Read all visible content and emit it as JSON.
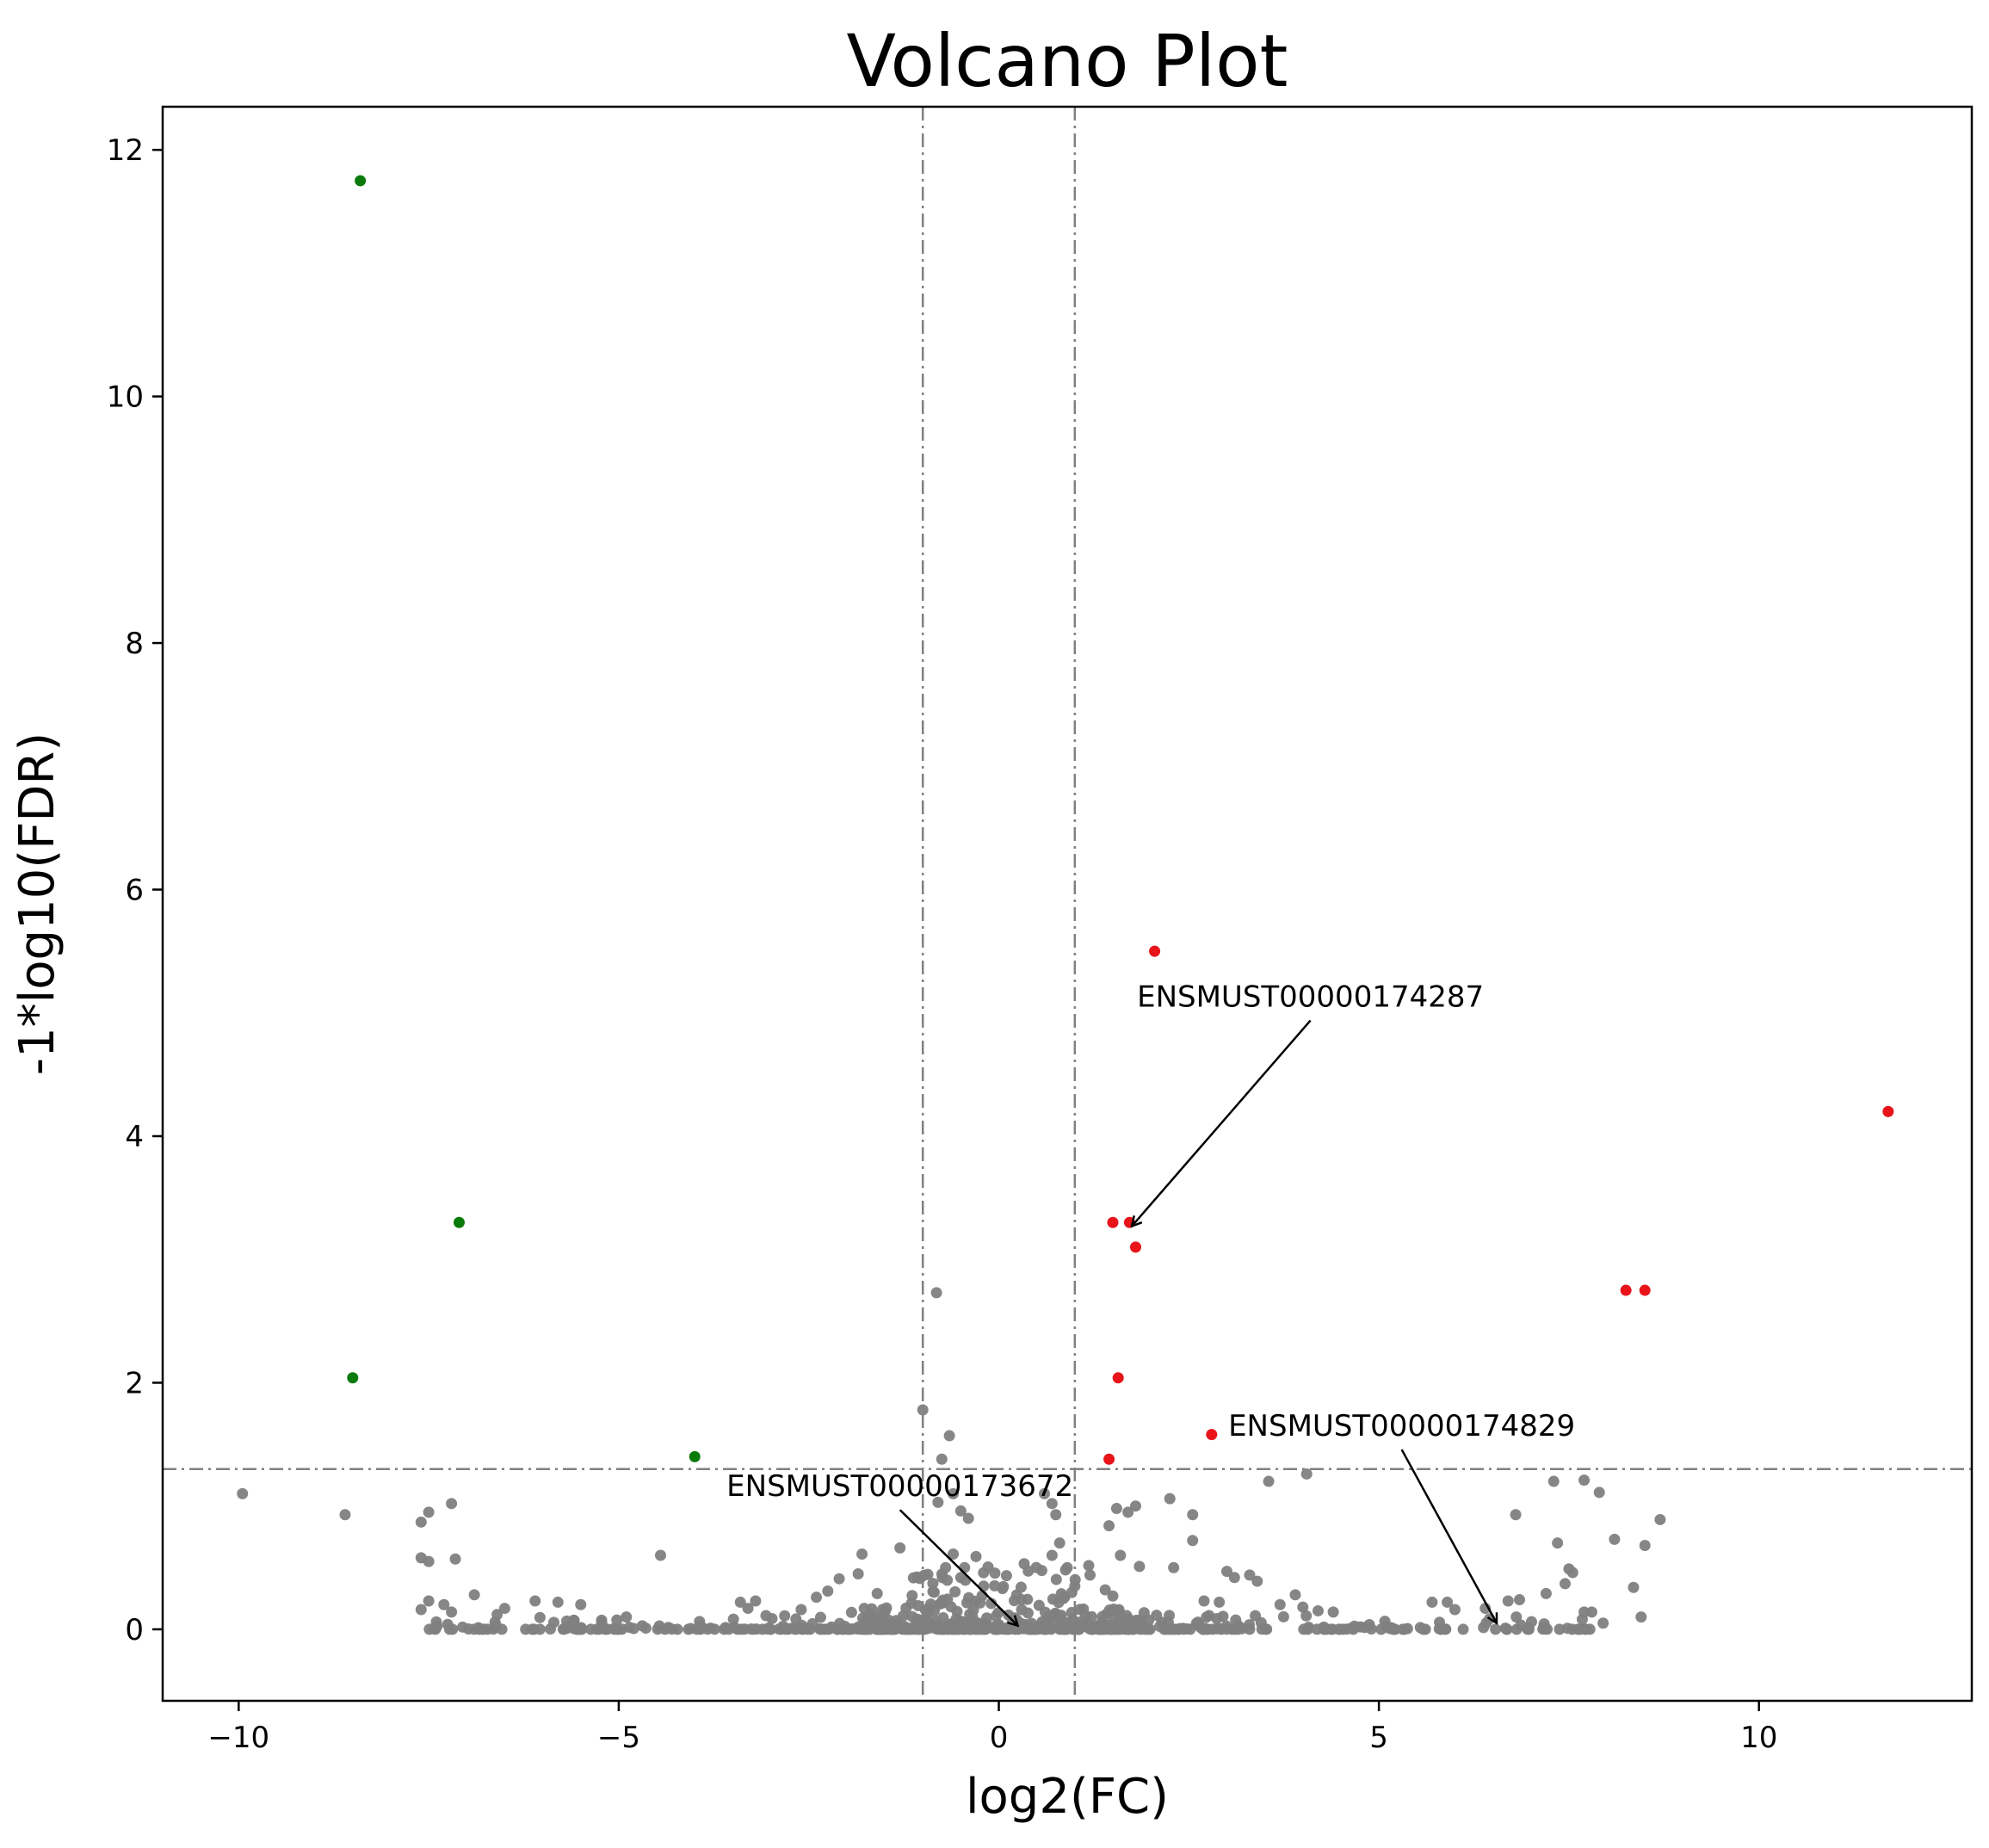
{
  "chart_data": {
    "type": "scatter",
    "title": "Volcano Plot",
    "xlabel": "log2(FC)",
    "ylabel": "-1*log10(FDR)",
    "xlim": [
      -11,
      12.8
    ],
    "ylim": [
      -0.58,
      12.35
    ],
    "x_ticks": [
      -10,
      -5,
      0,
      5,
      10
    ],
    "x_tick_labels": [
      "−10",
      "−5",
      "0",
      "5",
      "10"
    ],
    "y_ticks": [
      0,
      2,
      4,
      6,
      8,
      10,
      12
    ],
    "y_tick_labels": [
      "0",
      "2",
      "4",
      "6",
      "8",
      "10",
      "12"
    ],
    "grid": false,
    "thresholds": {
      "log2fc": [
        -1,
        1
      ],
      "neg_log10_fdr": 1.3
    },
    "colors": {
      "down": "#0a7a0a",
      "up": "#e8141a",
      "ns": "#808080",
      "threshold_line": "#808080"
    },
    "series": [
      {
        "category": "down",
        "points": [
          [
            -8.4,
            11.75
          ],
          [
            -7.1,
            3.3
          ],
          [
            -8.5,
            2.04
          ],
          [
            -4,
            1.4
          ]
        ]
      },
      {
        "category": "up",
        "points": [
          [
            2.05,
            5.5
          ],
          [
            11.7,
            4.2
          ],
          [
            1.5,
            3.3
          ],
          [
            1.72,
            3.3
          ],
          [
            1.8,
            3.1
          ],
          [
            8.25,
            2.75
          ],
          [
            8.5,
            2.75
          ],
          [
            1.57,
            2.04
          ],
          [
            1.45,
            1.38
          ],
          [
            2.8,
            1.58
          ]
        ]
      },
      {
        "category": "ns",
        "points": [
          [
            -9.95,
            1.1
          ],
          [
            -8.6,
            0.93
          ],
          [
            -7.5,
            0.95
          ],
          [
            -7.6,
            0.87
          ],
          [
            -7.2,
            1.02
          ],
          [
            -7.6,
            0.58
          ],
          [
            -7.5,
            0.55
          ],
          [
            -7.15,
            0.57
          ],
          [
            -4.45,
            0.6
          ],
          [
            -7.6,
            0.16
          ],
          [
            -7.5,
            0.23
          ],
          [
            -7.3,
            0.2
          ],
          [
            -7.2,
            0.14
          ],
          [
            -6.9,
            0.28
          ],
          [
            -7.4,
            0.06
          ],
          [
            -7.25,
            0.04
          ],
          [
            -6.6,
            0.12
          ],
          [
            -6.5,
            0.17
          ],
          [
            -6.1,
            0.23
          ],
          [
            -5.8,
            0.22
          ],
          [
            -5.5,
            0.2
          ],
          [
            -4.9,
            0.1
          ],
          [
            -3.4,
            0.22
          ],
          [
            -3.3,
            0.17
          ],
          [
            -3.2,
            0.23
          ],
          [
            -2.6,
            0.16
          ],
          [
            -2.4,
            0.26
          ],
          [
            -2.25,
            0.31
          ],
          [
            -2.1,
            0.41
          ],
          [
            -1.8,
            0.61
          ],
          [
            -1.85,
            0.45
          ],
          [
            -1.6,
            0.29
          ],
          [
            -1.3,
            0.66
          ],
          [
            -1.0,
            1.78
          ],
          [
            -0.82,
            2.73
          ],
          [
            -0.75,
            1.38
          ],
          [
            -0.65,
            1.57
          ],
          [
            -0.8,
            1.03
          ],
          [
            -0.6,
            1.1
          ],
          [
            -0.5,
            0.96
          ],
          [
            -0.4,
            0.9
          ],
          [
            -0.6,
            0.61
          ],
          [
            -0.45,
            0.5
          ],
          [
            -0.3,
            0.59
          ],
          [
            -0.7,
            0.5
          ],
          [
            -0.5,
            0.42
          ],
          [
            -0.85,
            0.3
          ],
          [
            -0.2,
            0.35
          ],
          [
            -0.1,
            0.21
          ],
          [
            0.3,
            0.16
          ],
          [
            0.6,
            1.1
          ],
          [
            0.7,
            1.02
          ],
          [
            0.75,
            0.93
          ],
          [
            0.8,
            0.7
          ],
          [
            0.7,
            0.6
          ],
          [
            0.9,
            0.5
          ],
          [
            0.85,
            0.25
          ],
          [
            1.0,
            0.35
          ],
          [
            1.2,
            0.44
          ],
          [
            1.4,
            0.32
          ],
          [
            1.5,
            0.27
          ],
          [
            1.6,
            0.6
          ],
          [
            1.7,
            0.95
          ],
          [
            1.8,
            1.0
          ],
          [
            1.55,
            0.98
          ],
          [
            1.45,
            0.84
          ],
          [
            1.85,
            0.51
          ],
          [
            2.3,
            0.5
          ],
          [
            2.25,
            1.06
          ],
          [
            2.55,
            0.93
          ],
          [
            2.55,
            0.72
          ],
          [
            2.7,
            0.23
          ],
          [
            2.9,
            0.22
          ],
          [
            3.0,
            0.47
          ],
          [
            3.1,
            0.42
          ],
          [
            3.3,
            0.44
          ],
          [
            3.4,
            0.39
          ],
          [
            3.55,
            1.2
          ],
          [
            3.7,
            0.2
          ],
          [
            3.9,
            0.28
          ],
          [
            4.05,
            1.26
          ],
          [
            4.0,
            0.18
          ],
          [
            4.2,
            0.15
          ],
          [
            4.4,
            0.14
          ],
          [
            5.7,
            0.22
          ],
          [
            5.9,
            0.22
          ],
          [
            6.0,
            0.16
          ],
          [
            6.4,
            0.17
          ],
          [
            6.7,
            0.23
          ],
          [
            6.8,
            0.93
          ],
          [
            6.85,
            0.24
          ],
          [
            7.2,
            0.29
          ],
          [
            7.3,
            1.2
          ],
          [
            7.35,
            0.7
          ],
          [
            7.45,
            0.37
          ],
          [
            7.5,
            0.49
          ],
          [
            7.55,
            0.46
          ],
          [
            7.7,
            1.21
          ],
          [
            7.9,
            1.11
          ],
          [
            8.1,
            0.73
          ],
          [
            8.35,
            0.34
          ],
          [
            8.45,
            0.1
          ],
          [
            8.5,
            0.68
          ],
          [
            8.7,
            0.89
          ],
          [
            7.7,
            0.14
          ],
          [
            7.8,
            0.14
          ],
          [
            7.95,
            0.05
          ]
        ]
      }
    ],
    "annotations": [
      {
        "text": "ENSMUST00000174287",
        "point": [
          1.75,
          3.27
        ],
        "text_at": [
          4.1,
          5.05
        ]
      },
      {
        "text": "ENSMUST00000174829",
        "point": [
          6.55,
          0.05
        ],
        "text_at": [
          5.3,
          1.57
        ]
      },
      {
        "text": "ENSMUST00000173672",
        "point": [
          0.25,
          0.03
        ],
        "text_at": [
          -1.3,
          1.08
        ]
      }
    ]
  }
}
